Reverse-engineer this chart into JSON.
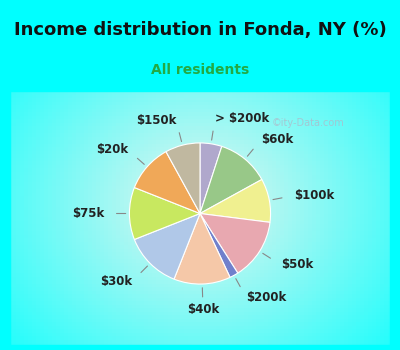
{
  "title": "Income distribution in Fonda, NY (%)",
  "subtitle": "All residents",
  "watermark": "©ity-Data.com",
  "bg_color": "#00FFFF",
  "chart_bg_gradient_center": "#e8f5ee",
  "slices": [
    {
      "label": "> $200k",
      "value": 5,
      "color": "#b0a8cc"
    },
    {
      "label": "$60k",
      "value": 12,
      "color": "#98c888"
    },
    {
      "label": "$100k",
      "value": 10,
      "color": "#f0f090"
    },
    {
      "label": "$50k",
      "value": 14,
      "color": "#e8a8b0"
    },
    {
      "label": "$200k",
      "value": 2,
      "color": "#7080cc"
    },
    {
      "label": "$40k",
      "value": 13,
      "color": "#f5c8a8"
    },
    {
      "label": "$30k",
      "value": 13,
      "color": "#b0c8e8"
    },
    {
      "label": "$75k",
      "value": 12,
      "color": "#c8e860"
    },
    {
      "label": "$20k",
      "value": 11,
      "color": "#f0a858"
    },
    {
      "label": "$150k",
      "value": 8,
      "color": "#c0b8a0"
    }
  ],
  "title_fontsize": 13,
  "subtitle_fontsize": 10,
  "label_fontsize": 8.5,
  "title_color": "#111111",
  "subtitle_color": "#22aa44"
}
